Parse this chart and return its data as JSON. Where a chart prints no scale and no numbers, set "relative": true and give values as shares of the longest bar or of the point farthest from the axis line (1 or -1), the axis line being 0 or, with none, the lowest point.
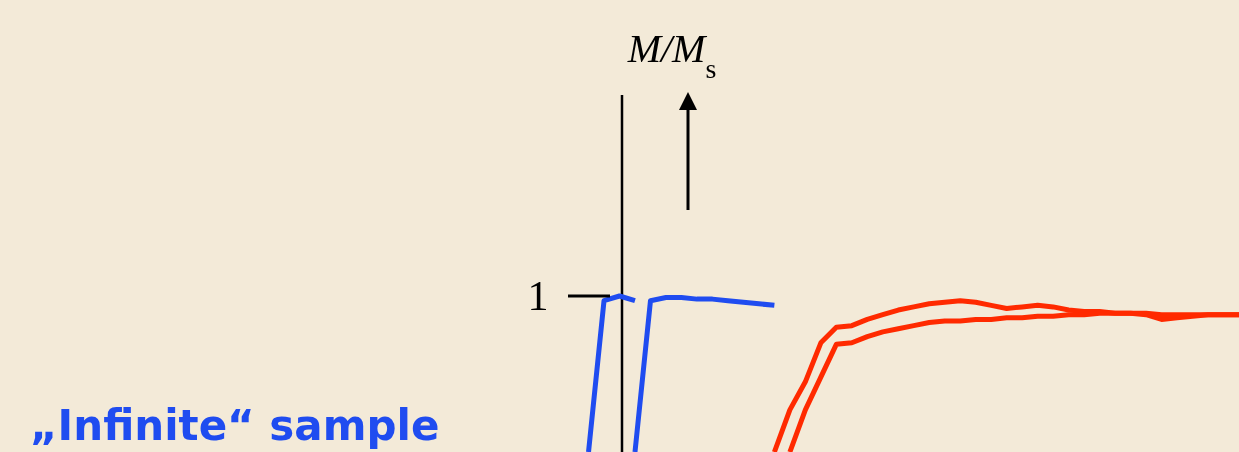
{
  "chart_data": {
    "type": "line",
    "relative": true,
    "line_style": "solid",
    "annotations": [
      "1",
      "„Infinite“ sample",
      "M/M$_{s}$"
    ],
    "categories": [
      null,
      null,
      null,
      null,
      null,
      null,
      null,
      null,
      null,
      null,
      null,
      null,
      null,
      null,
      null,
      null,
      null,
      null,
      null,
      null,
      null,
      null,
      null,
      null,
      null,
      null,
      null,
      null,
      null,
      null,
      null,
      null,
      null,
      null,
      null,
      null,
      null,
      null,
      null,
      null,
      null,
      null,
      null,
      null,
      null,
      null,
      null,
      null,
      null,
      null,
      null,
      null,
      null,
      null,
      null,
      null,
      null,
      null,
      null,
      null,
      null,
      null,
      null,
      null,
      null,
      null,
      null,
      null,
      null,
      null,
      null,
      null,
      null,
      null,
      null,
      null,
      null,
      null,
      null,
      null,
      null
    ],
    "series": [
      {
        "color": "#1f4cf0",
        "values": [
          null,
          null,
          null,
          null,
          null,
          null,
          null,
          null,
          null,
          null,
          null,
          null,
          null,
          null,
          null,
          null,
          null,
          null,
          null,
          null,
          null,
          null,
          null,
          null,
          null,
          null,
          null,
          null,
          null,
          null,
          null,
          null,
          null,
          null,
          null,
          null,
          null,
          null,
          0,
          0.97,
          1,
          0.97,
          null,
          null,
          null,
          null,
          null,
          null,
          null,
          null,
          null,
          null,
          null,
          null,
          null,
          null,
          null,
          null,
          null,
          null,
          null,
          null,
          null,
          null,
          null,
          null,
          null,
          null,
          null,
          null,
          null,
          null,
          null,
          null,
          null,
          null,
          null,
          null,
          null,
          null,
          null
        ]
      },
      {
        "color": "#1f4cf0",
        "values": [
          null,
          null,
          null,
          null,
          null,
          null,
          null,
          null,
          null,
          null,
          null,
          null,
          null,
          null,
          null,
          null,
          null,
          null,
          null,
          null,
          null,
          null,
          null,
          null,
          null,
          null,
          null,
          null,
          null,
          null,
          null,
          null,
          null,
          null,
          null,
          null,
          null,
          null,
          null,
          null,
          null,
          0,
          0.97,
          0.99,
          0.99,
          0.98,
          0.98,
          0.97,
          0.96,
          0.95,
          0.94,
          null,
          null,
          null,
          null,
          null,
          null,
          null,
          null,
          null,
          null,
          null,
          null,
          null,
          null,
          null,
          null,
          null,
          null,
          null,
          null,
          null,
          null,
          null,
          null,
          null,
          null,
          null,
          null,
          null,
          null
        ]
      },
      {
        "color": "#ff2a00",
        "values": [
          null,
          null,
          null,
          null,
          null,
          null,
          null,
          null,
          null,
          null,
          null,
          null,
          null,
          null,
          null,
          null,
          null,
          null,
          null,
          null,
          null,
          null,
          null,
          null,
          null,
          null,
          null,
          null,
          null,
          null,
          null,
          null,
          null,
          null,
          null,
          null,
          null,
          null,
          null,
          null,
          null,
          null,
          null,
          null,
          null,
          null,
          null,
          null,
          null,
          null,
          0,
          0.27,
          0.45,
          0.7,
          0.8,
          0.81,
          0.85,
          0.88,
          0.91,
          0.93,
          0.95,
          0.96,
          0.97,
          0.96,
          0.94,
          0.92,
          0.93,
          0.94,
          0.93,
          0.91,
          0.9,
          0.9,
          0.89,
          0.89,
          0.88,
          0.85,
          0.86,
          0.87,
          0.88,
          0.88,
          0.88
        ]
      },
      {
        "color": "#ff2a00",
        "values": [
          null,
          null,
          null,
          null,
          null,
          null,
          null,
          null,
          null,
          null,
          null,
          null,
          null,
          null,
          null,
          null,
          null,
          null,
          null,
          null,
          null,
          null,
          null,
          null,
          null,
          null,
          null,
          null,
          null,
          null,
          null,
          null,
          null,
          null,
          null,
          null,
          null,
          null,
          null,
          null,
          null,
          null,
          null,
          null,
          null,
          null,
          null,
          null,
          null,
          null,
          null,
          0,
          0.27,
          0.48,
          0.69,
          0.7,
          0.74,
          0.77,
          0.79,
          0.81,
          0.83,
          0.84,
          0.84,
          0.85,
          0.85,
          0.86,
          0.86,
          0.87,
          0.87,
          0.88,
          0.88,
          0.89,
          0.89,
          0.89,
          0.89,
          0.88,
          0.88,
          0.88,
          0.88,
          0.88,
          0.88
        ]
      }
    ]
  }
}
